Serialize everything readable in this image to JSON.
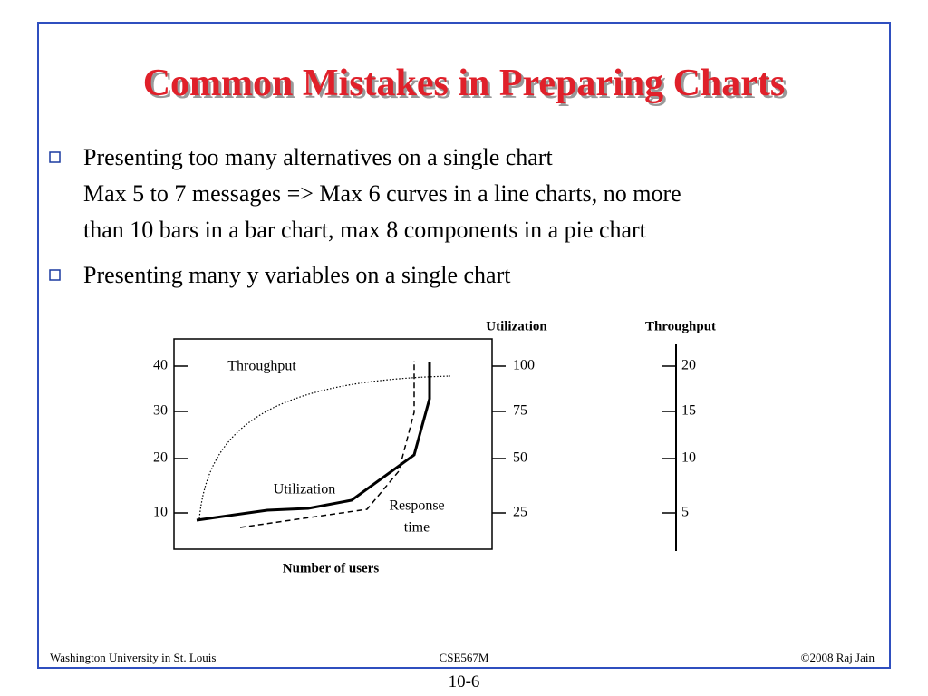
{
  "title": "Common Mistakes in Preparing Charts",
  "bullets": [
    {
      "text": "Presenting too many alternatives on a single chart",
      "lines": [
        "Max 5 to 7 messages => Max 6 curves in a line charts, no more",
        "than 10 bars in a bar chart, max 8 components in a pie chart"
      ]
    },
    {
      "text": "Presenting many y variables on a single chart"
    }
  ],
  "figure": {
    "axis_titles": [
      "Utilization",
      "Throughput"
    ],
    "left_ticks": [
      "40",
      "30",
      "20",
      "10"
    ],
    "utilization_ticks": [
      "100",
      "75",
      "50",
      "25"
    ],
    "throughput_ticks": [
      "20",
      "15",
      "10",
      "5"
    ],
    "curve_labels": [
      "Throughput",
      "Utilization",
      "Response",
      "time"
    ],
    "x_label": "Number of users"
  },
  "footer": {
    "left": "Washington University in St. Louis",
    "center": "CSE567M",
    "right": "©2008 Raj Jain"
  },
  "page_number": "10-6"
}
